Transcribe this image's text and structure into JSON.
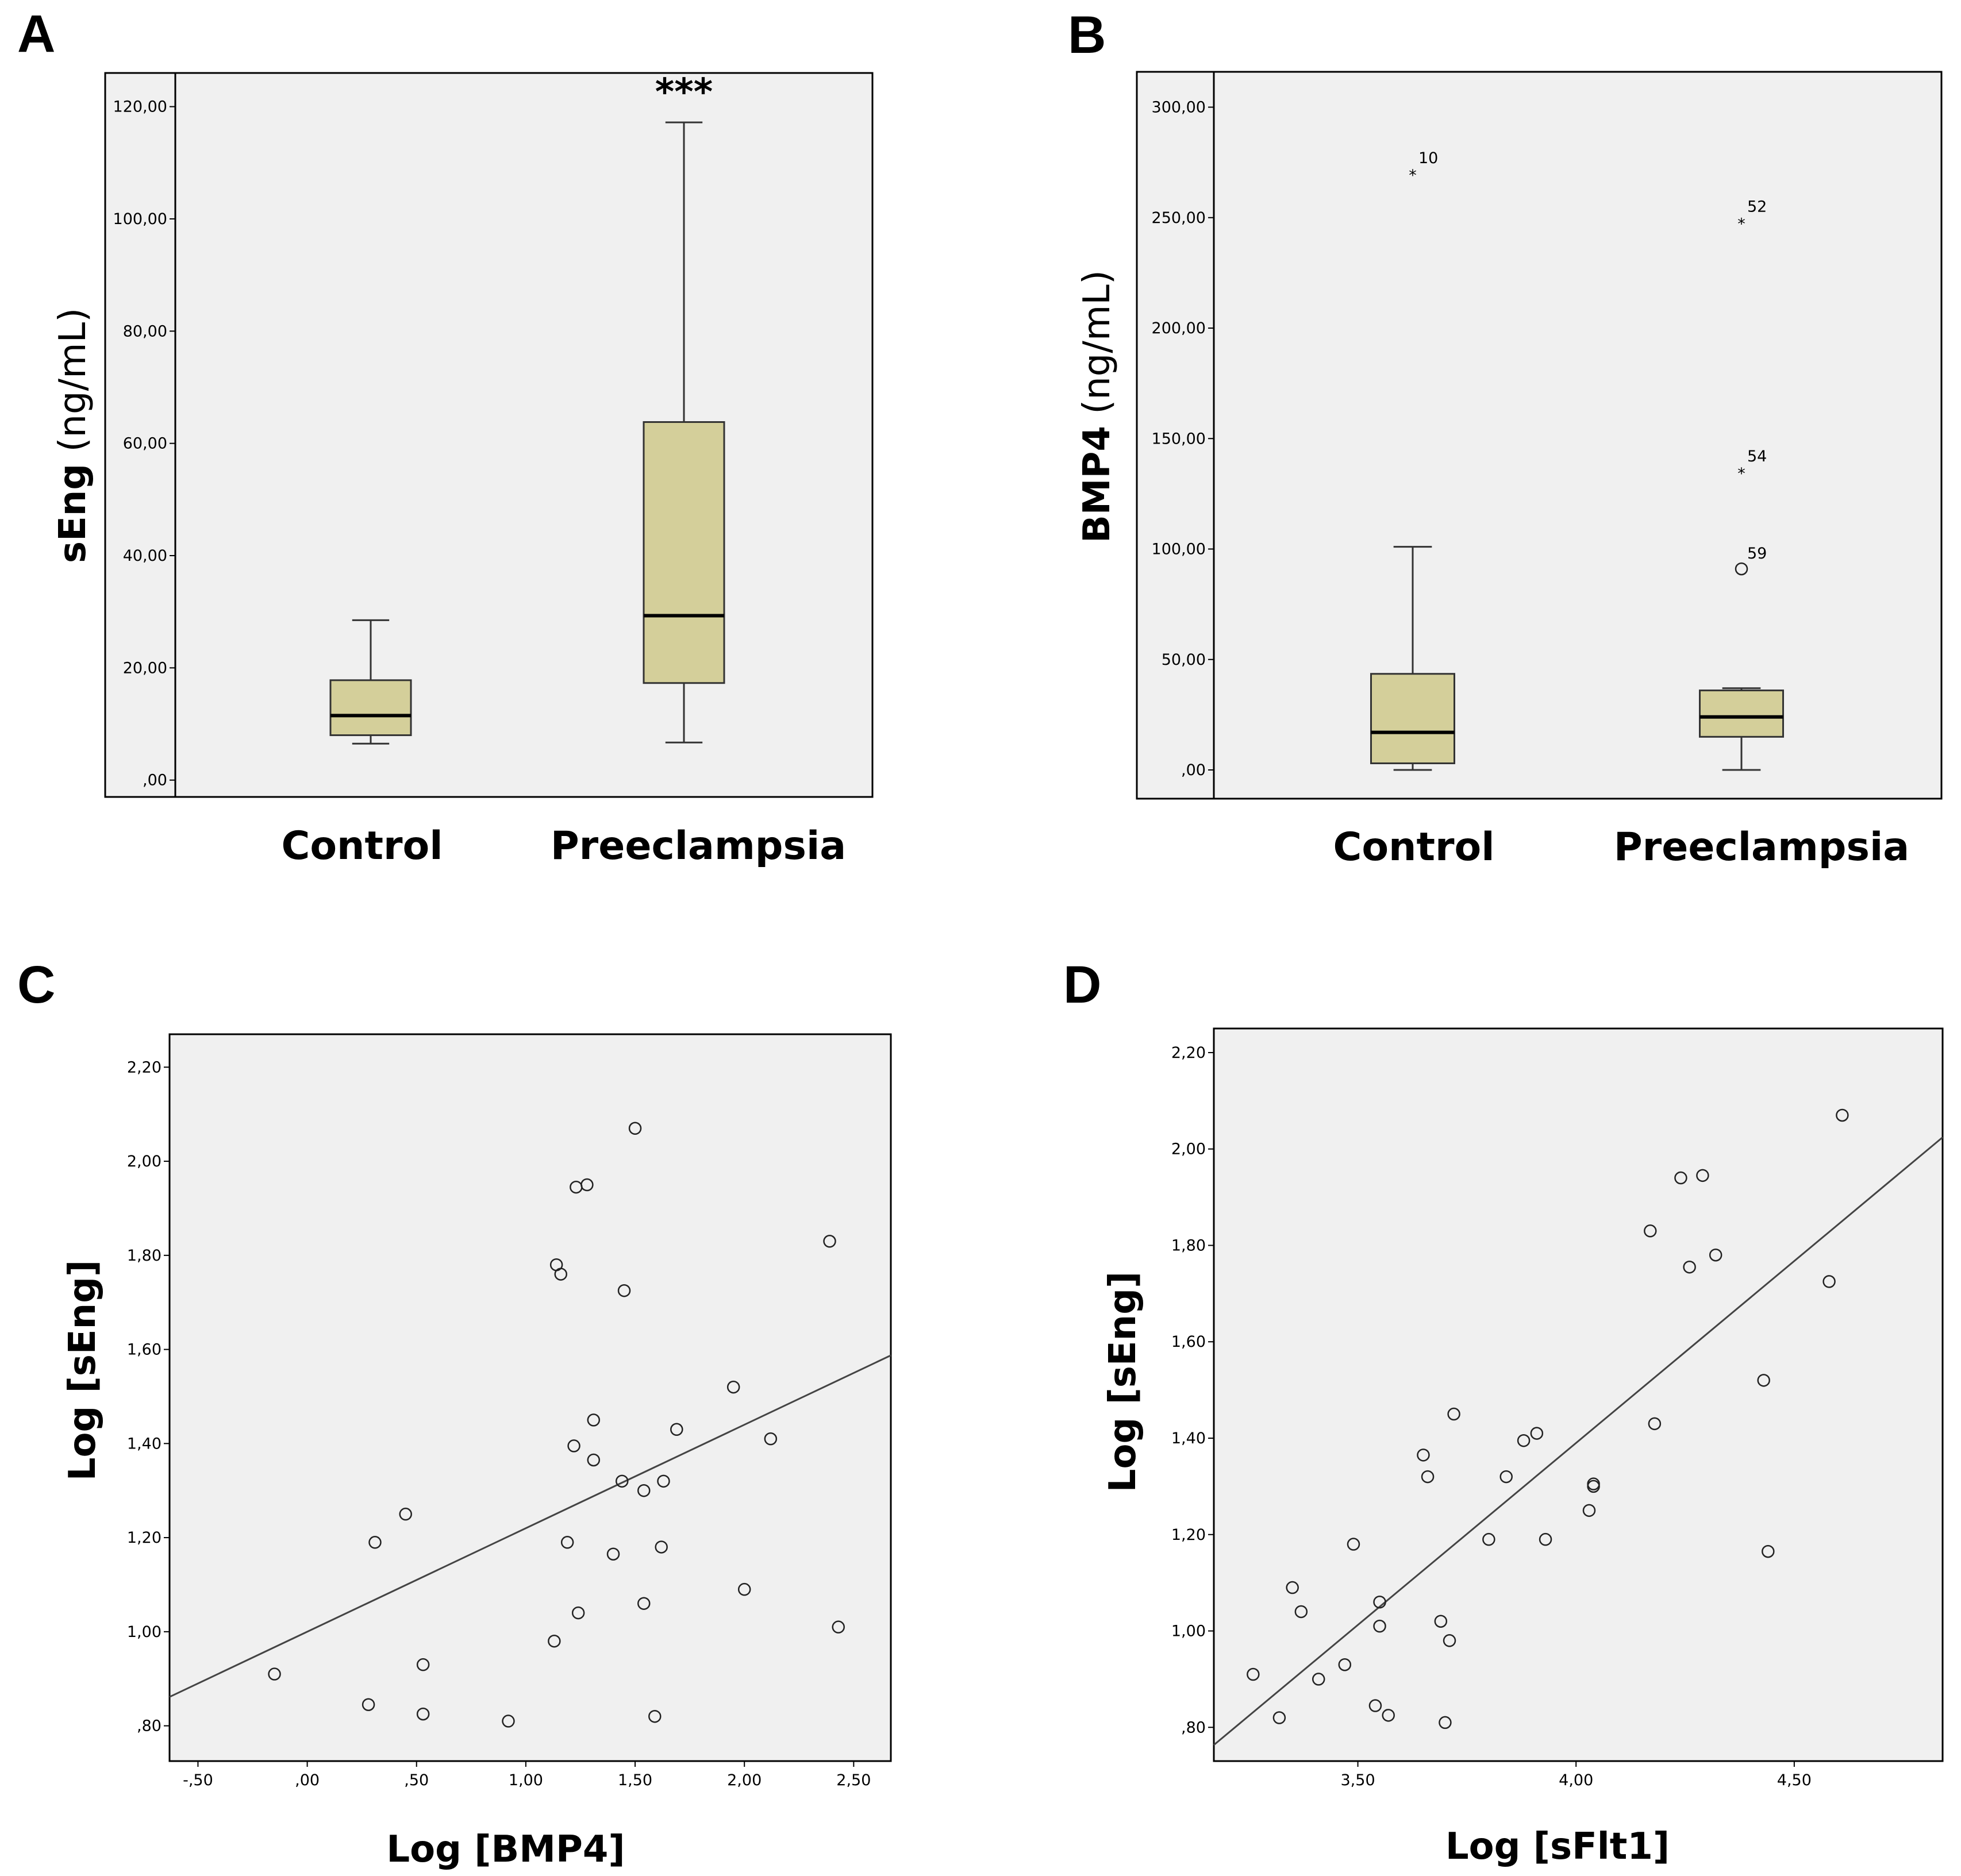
{
  "panels": {
    "A": {
      "letter": "A"
    },
    "B": {
      "letter": "B"
    },
    "C": {
      "letter": "C"
    },
    "D": {
      "letter": "D"
    }
  },
  "chart_data": [
    {
      "id": "A",
      "type": "box",
      "ylabel_bold": "sEng",
      "ylabel_unit": " (ng/mL)",
      "categories": [
        "Control",
        "Preeclampsia"
      ],
      "ylim": [
        -3,
        126
      ],
      "yticks": [
        0,
        20,
        40,
        60,
        80,
        100,
        120
      ],
      "ytick_labels": [
        ",00",
        "20,00",
        "40,00",
        "60,00",
        "80,00",
        "100,00",
        "120,00"
      ],
      "boxes": [
        {
          "category": "Control",
          "min": 6.5,
          "q1": 8,
          "median": 11.5,
          "q3": 17.8,
          "max": 28.5
        },
        {
          "category": "Preeclampsia",
          "min": 6.7,
          "q1": 17.3,
          "median": 29.3,
          "q3": 63.8,
          "max": 117.2,
          "significance": "***"
        }
      ]
    },
    {
      "id": "B",
      "type": "box",
      "ylabel_bold": "BMP4",
      "ylabel_unit": " (ng/mL)",
      "categories": [
        "Control",
        "Preeclampsia"
      ],
      "ylim": [
        -13,
        316
      ],
      "yticks": [
        0,
        50,
        100,
        150,
        200,
        250,
        300
      ],
      "ytick_labels": [
        ",00",
        "50,00",
        "100,00",
        "150,00",
        "200,00",
        "250,00",
        "300,00"
      ],
      "boxes": [
        {
          "category": "Control",
          "min": 0,
          "q1": 3,
          "median": 17,
          "q3": 43.5,
          "max": 101,
          "outliers": [
            {
              "value": 270,
              "marker": "star",
              "label": "10"
            }
          ]
        },
        {
          "category": "Preeclampsia",
          "min": 0,
          "q1": 15,
          "median": 24,
          "q3": 36,
          "max": 37,
          "outliers": [
            {
              "value": 248,
              "marker": "star",
              "label": "52"
            },
            {
              "value": 135,
              "marker": "star",
              "label": "54"
            },
            {
              "value": 91,
              "marker": "circle",
              "label": "59"
            }
          ]
        }
      ]
    },
    {
      "id": "C",
      "type": "scatter",
      "xlabel": "Log [BMP4]",
      "ylabel": "Log [sEng]",
      "xlim": [
        -0.63,
        2.67
      ],
      "ylim": [
        0.725,
        2.27
      ],
      "xticks": [
        -0.5,
        0,
        0.5,
        1,
        1.5,
        2,
        2.5
      ],
      "xtick_labels": [
        "-,50",
        ",00",
        ",50",
        "1,00",
        "1,50",
        "2,00",
        "2,50"
      ],
      "yticks": [
        0.8,
        1.0,
        1.2,
        1.4,
        1.6,
        1.8,
        2.0,
        2.2
      ],
      "ytick_labels": [
        ",80",
        "1,00",
        "1,20",
        "1,40",
        "1,60",
        "1,80",
        "2,00",
        "2,20"
      ],
      "points": [
        [
          -0.15,
          0.91
        ],
        [
          0.28,
          0.845
        ],
        [
          0.31,
          1.19
        ],
        [
          0.45,
          1.25
        ],
        [
          0.53,
          0.93
        ],
        [
          0.53,
          0.825
        ],
        [
          0.92,
          0.81
        ],
        [
          1.13,
          0.98
        ],
        [
          1.14,
          1.78
        ],
        [
          1.16,
          1.76
        ],
        [
          1.19,
          1.19
        ],
        [
          1.23,
          1.945
        ],
        [
          1.22,
          1.395
        ],
        [
          1.24,
          1.04
        ],
        [
          1.28,
          1.95
        ],
        [
          1.31,
          1.45
        ],
        [
          1.31,
          1.365
        ],
        [
          1.4,
          1.165
        ],
        [
          1.44,
          1.32
        ],
        [
          1.45,
          1.725
        ],
        [
          1.5,
          2.07
        ],
        [
          1.54,
          1.3
        ],
        [
          1.54,
          1.06
        ],
        [
          1.59,
          0.82
        ],
        [
          1.62,
          1.18
        ],
        [
          1.63,
          1.32
        ],
        [
          1.69,
          1.43
        ],
        [
          1.95,
          1.52
        ],
        [
          2.0,
          1.09
        ],
        [
          2.12,
          1.41
        ],
        [
          2.39,
          1.83
        ],
        [
          2.43,
          1.01
        ]
      ],
      "fit": {
        "intercept": 1.0,
        "slope": 0.22
      }
    },
    {
      "id": "D",
      "type": "scatter",
      "xlabel": "Log [sFlt1]",
      "ylabel": "Log [sEng]",
      "xlim": [
        3.17,
        4.84
      ],
      "ylim": [
        0.73,
        2.25
      ],
      "xticks": [
        3.5,
        4.0,
        4.5
      ],
      "xtick_labels": [
        "3,50",
        "4,00",
        "4,50"
      ],
      "yticks": [
        0.8,
        1.0,
        1.2,
        1.4,
        1.6,
        1.8,
        2.0,
        2.2
      ],
      "ytick_labels": [
        ",80",
        "1,00",
        "1,20",
        "1,40",
        "1,60",
        "1,80",
        "2,00",
        "2,20"
      ],
      "points": [
        [
          3.26,
          0.91
        ],
        [
          3.32,
          0.82
        ],
        [
          3.35,
          1.09
        ],
        [
          3.37,
          1.04
        ],
        [
          3.41,
          0.9
        ],
        [
          3.47,
          0.93
        ],
        [
          3.49,
          1.18
        ],
        [
          3.55,
          1.06
        ],
        [
          3.55,
          1.01
        ],
        [
          3.54,
          0.845
        ],
        [
          3.57,
          0.825
        ],
        [
          3.65,
          1.365
        ],
        [
          3.66,
          1.32
        ],
        [
          3.69,
          1.02
        ],
        [
          3.7,
          0.81
        ],
        [
          3.71,
          0.98
        ],
        [
          3.72,
          1.45
        ],
        [
          3.8,
          1.19
        ],
        [
          3.84,
          1.32
        ],
        [
          3.88,
          1.395
        ],
        [
          3.91,
          1.41
        ],
        [
          3.93,
          1.19
        ],
        [
          4.03,
          1.25
        ],
        [
          4.04,
          1.3
        ],
        [
          4.04,
          1.305
        ],
        [
          4.17,
          1.83
        ],
        [
          4.18,
          1.43
        ],
        [
          4.24,
          1.94
        ],
        [
          4.26,
          1.755
        ],
        [
          4.29,
          1.945
        ],
        [
          4.32,
          1.78
        ],
        [
          4.43,
          1.52
        ],
        [
          4.44,
          1.165
        ],
        [
          4.58,
          1.725
        ],
        [
          4.61,
          2.07
        ]
      ],
      "fit": {
        "intercept": -1.63,
        "slope": 0.755
      }
    }
  ]
}
